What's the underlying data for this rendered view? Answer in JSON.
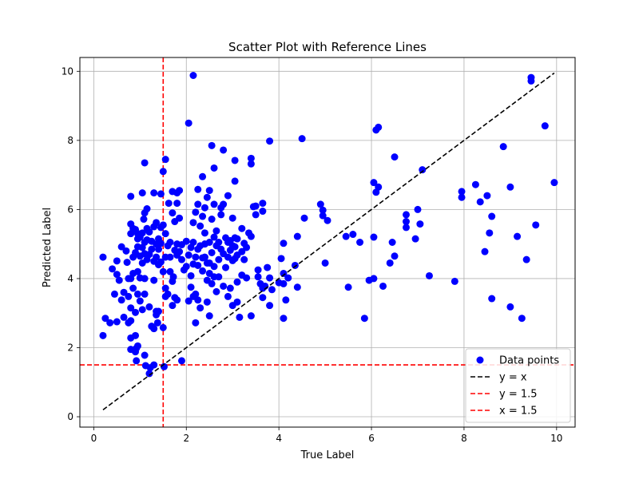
{
  "chart_data": {
    "type": "scatter",
    "title": "Scatter Plot with Reference Lines",
    "xlabel": "True Label",
    "ylabel": "Predicted Label",
    "xlim": [
      -0.3,
      10.4
    ],
    "ylim": [
      -0.3,
      10.4
    ],
    "x_ticks": [
      0,
      2,
      4,
      6,
      8,
      10
    ],
    "y_ticks": [
      0,
      2,
      4,
      6,
      8,
      10
    ],
    "grid": true,
    "legend_position": "bottom-right",
    "colors": {
      "points": "#0000ff",
      "identity_line": "#000000",
      "reference_lines": "#ff0000",
      "grid": "#b0b0b0"
    },
    "series": [
      {
        "name": "Data points",
        "kind": "scatter",
        "points": [
          [
            0.2,
            4.62
          ],
          [
            0.2,
            2.35
          ],
          [
            0.25,
            2.85
          ],
          [
            0.35,
            2.72
          ],
          [
            0.4,
            4.28
          ],
          [
            0.45,
            3.55
          ],
          [
            0.5,
            4.51
          ],
          [
            0.5,
            4.12
          ],
          [
            0.5,
            2.75
          ],
          [
            0.55,
            3.95
          ],
          [
            0.6,
            3.38
          ],
          [
            0.6,
            4.92
          ],
          [
            0.65,
            3.6
          ],
          [
            0.65,
            2.88
          ],
          [
            0.7,
            4.8
          ],
          [
            0.72,
            4.47
          ],
          [
            0.75,
            3.48
          ],
          [
            0.75,
            4.0
          ],
          [
            0.75,
            2.72
          ],
          [
            0.8,
            5.3
          ],
          [
            0.8,
            5.58
          ],
          [
            0.8,
            6.38
          ],
          [
            0.8,
            4.0
          ],
          [
            0.8,
            3.15
          ],
          [
            0.8,
            2.78
          ],
          [
            0.8,
            2.28
          ],
          [
            0.8,
            1.95
          ],
          [
            0.85,
            5.45
          ],
          [
            0.85,
            4.62
          ],
          [
            0.85,
            3.72
          ],
          [
            0.85,
            4.15
          ],
          [
            0.9,
            5.42
          ],
          [
            0.9,
            4.75
          ],
          [
            0.9,
            3.02
          ],
          [
            0.9,
            2.35
          ],
          [
            0.9,
            1.88
          ],
          [
            0.92,
            1.62
          ],
          [
            0.92,
            1.98
          ],
          [
            0.95,
            5.3
          ],
          [
            0.95,
            5.15
          ],
          [
            0.95,
            4.92
          ],
          [
            0.95,
            4.2
          ],
          [
            0.95,
            3.55
          ],
          [
            0.95,
            2.05
          ],
          [
            1.0,
            5.2
          ],
          [
            1.0,
            4.65
          ],
          [
            1.0,
            4.02
          ],
          [
            1.0,
            3.35
          ],
          [
            1.05,
            5.32
          ],
          [
            1.05,
            4.9
          ],
          [
            1.05,
            4.45
          ],
          [
            1.05,
            3.1
          ],
          [
            1.05,
            6.48
          ],
          [
            1.08,
            5.72
          ],
          [
            1.1,
            7.35
          ],
          [
            1.1,
            5.9
          ],
          [
            1.1,
            5.05
          ],
          [
            1.1,
            4.72
          ],
          [
            1.1,
            4.0
          ],
          [
            1.1,
            3.55
          ],
          [
            1.1,
            1.78
          ],
          [
            1.12,
            1.48
          ],
          [
            1.15,
            6.02
          ],
          [
            1.15,
            5.45
          ],
          [
            1.15,
            5.12
          ],
          [
            1.15,
            4.55
          ],
          [
            1.2,
            5.35
          ],
          [
            1.2,
            4.7
          ],
          [
            1.2,
            3.18
          ],
          [
            1.2,
            1.25
          ],
          [
            1.22,
            1.42
          ],
          [
            1.25,
            5.08
          ],
          [
            1.25,
            4.85
          ],
          [
            1.25,
            2.62
          ],
          [
            1.3,
            6.48
          ],
          [
            1.3,
            5.5
          ],
          [
            1.3,
            4.5
          ],
          [
            1.3,
            3.95
          ],
          [
            1.3,
            2.55
          ],
          [
            1.3,
            1.5
          ],
          [
            1.35,
            5.62
          ],
          [
            1.35,
            5.0
          ],
          [
            1.35,
            4.62
          ],
          [
            1.35,
            3.05
          ],
          [
            1.35,
            2.95
          ],
          [
            1.38,
            2.72
          ],
          [
            1.4,
            5.15
          ],
          [
            1.4,
            4.85
          ],
          [
            1.4,
            4.4
          ],
          [
            1.4,
            3.05
          ],
          [
            1.45,
            6.45
          ],
          [
            1.45,
            5.48
          ],
          [
            1.45,
            5.02
          ],
          [
            1.45,
            4.48
          ],
          [
            1.5,
            7.1
          ],
          [
            1.5,
            5.55
          ],
          [
            1.5,
            4.2
          ],
          [
            1.5,
            2.58
          ],
          [
            1.52,
            1.45
          ],
          [
            1.55,
            7.45
          ],
          [
            1.55,
            5.3
          ],
          [
            1.55,
            4.62
          ],
          [
            1.55,
            3.72
          ],
          [
            1.55,
            3.48
          ],
          [
            1.6,
            4.95
          ],
          [
            1.6,
            3.55
          ],
          [
            1.62,
            6.18
          ],
          [
            1.65,
            5.05
          ],
          [
            1.65,
            4.62
          ],
          [
            1.65,
            4.2
          ],
          [
            1.7,
            6.52
          ],
          [
            1.7,
            5.9
          ],
          [
            1.7,
            3.92
          ],
          [
            1.7,
            3.22
          ],
          [
            1.72,
            4.05
          ],
          [
            1.75,
            5.65
          ],
          [
            1.75,
            4.82
          ],
          [
            1.75,
            3.45
          ],
          [
            1.8,
            6.48
          ],
          [
            1.8,
            6.18
          ],
          [
            1.8,
            5.0
          ],
          [
            1.8,
            4.68
          ],
          [
            1.8,
            3.38
          ],
          [
            1.85,
            5.75
          ],
          [
            1.85,
            4.78
          ],
          [
            1.85,
            6.55
          ],
          [
            1.9,
            4.98
          ],
          [
            1.9,
            4.55
          ],
          [
            1.9,
            1.62
          ],
          [
            1.95,
            4.25
          ],
          [
            2.0,
            5.08
          ],
          [
            2.0,
            4.35
          ],
          [
            2.05,
            8.5
          ],
          [
            2.05,
            4.68
          ],
          [
            2.05,
            3.35
          ],
          [
            2.1,
            4.9
          ],
          [
            2.1,
            4.08
          ],
          [
            2.1,
            3.75
          ],
          [
            2.15,
            9.88
          ],
          [
            2.15,
            5.62
          ],
          [
            2.15,
            5.05
          ],
          [
            2.15,
            4.42
          ],
          [
            2.15,
            3.48
          ],
          [
            2.2,
            5.92
          ],
          [
            2.2,
            4.62
          ],
          [
            2.2,
            3.55
          ],
          [
            2.2,
            2.72
          ],
          [
            2.25,
            6.58
          ],
          [
            2.25,
            6.15
          ],
          [
            2.25,
            4.85
          ],
          [
            2.25,
            4.38
          ],
          [
            2.25,
            3.38
          ],
          [
            2.3,
            5.52
          ],
          [
            2.3,
            4.95
          ],
          [
            2.3,
            3.15
          ],
          [
            2.35,
            6.95
          ],
          [
            2.35,
            5.8
          ],
          [
            2.35,
            4.6
          ],
          [
            2.35,
            4.22
          ],
          [
            2.4,
            6.05
          ],
          [
            2.4,
            5.32
          ],
          [
            2.4,
            5.0
          ],
          [
            2.4,
            4.62
          ],
          [
            2.45,
            6.35
          ],
          [
            2.45,
            4.45
          ],
          [
            2.45,
            3.95
          ],
          [
            2.45,
            3.32
          ],
          [
            2.5,
            6.55
          ],
          [
            2.5,
            5.05
          ],
          [
            2.5,
            4.45
          ],
          [
            2.5,
            4.15
          ],
          [
            2.5,
            2.92
          ],
          [
            2.55,
            7.85
          ],
          [
            2.55,
            5.72
          ],
          [
            2.55,
            4.75
          ],
          [
            2.55,
            3.85
          ],
          [
            2.6,
            7.2
          ],
          [
            2.6,
            6.15
          ],
          [
            2.6,
            5.2
          ],
          [
            2.6,
            4.35
          ],
          [
            2.6,
            4.05
          ],
          [
            2.65,
            5.38
          ],
          [
            2.65,
            4.95
          ],
          [
            2.65,
            3.62
          ],
          [
            2.7,
            5.05
          ],
          [
            2.7,
            4.55
          ],
          [
            2.7,
            4.05
          ],
          [
            2.75,
            6.05
          ],
          [
            2.75,
            5.85
          ],
          [
            2.75,
            4.85
          ],
          [
            2.8,
            7.72
          ],
          [
            2.8,
            6.15
          ],
          [
            2.8,
            4.72
          ],
          [
            2.8,
            3.78
          ],
          [
            2.85,
            5.18
          ],
          [
            2.85,
            4.32
          ],
          [
            2.9,
            6.4
          ],
          [
            2.9,
            5.05
          ],
          [
            2.9,
            4.62
          ],
          [
            2.9,
            3.48
          ],
          [
            2.95,
            5.1
          ],
          [
            2.95,
            4.82
          ],
          [
            2.95,
            3.72
          ],
          [
            3.0,
            5.75
          ],
          [
            3.0,
            4.95
          ],
          [
            3.0,
            4.52
          ],
          [
            3.0,
            3.22
          ],
          [
            3.05,
            7.42
          ],
          [
            3.05,
            6.82
          ],
          [
            3.05,
            5.18
          ],
          [
            3.05,
            4.92
          ],
          [
            3.05,
            4.58
          ],
          [
            3.1,
            5.15
          ],
          [
            3.1,
            4.68
          ],
          [
            3.1,
            3.9
          ],
          [
            3.1,
            3.32
          ],
          [
            3.15,
            2.88
          ],
          [
            3.2,
            5.45
          ],
          [
            3.2,
            4.78
          ],
          [
            3.2,
            4.1
          ],
          [
            3.25,
            5.02
          ],
          [
            3.25,
            4.55
          ],
          [
            3.3,
            4.9
          ],
          [
            3.3,
            4.02
          ],
          [
            3.35,
            5.32
          ],
          [
            3.4,
            7.48
          ],
          [
            3.4,
            7.32
          ],
          [
            3.4,
            5.22
          ],
          [
            3.4,
            2.92
          ],
          [
            3.45,
            6.08
          ],
          [
            3.5,
            6.1
          ],
          [
            3.5,
            5.85
          ],
          [
            3.55,
            4.25
          ],
          [
            3.55,
            4.05
          ],
          [
            3.6,
            3.85
          ],
          [
            3.65,
            6.18
          ],
          [
            3.65,
            5.95
          ],
          [
            3.65,
            3.72
          ],
          [
            3.65,
            3.45
          ],
          [
            3.7,
            3.78
          ],
          [
            3.75,
            4.32
          ],
          [
            3.8,
            7.98
          ],
          [
            3.8,
            3.22
          ],
          [
            3.8,
            4.02
          ],
          [
            3.85,
            3.68
          ],
          [
            4.0,
            3.88
          ],
          [
            4.05,
            4.58
          ],
          [
            4.1,
            5.02
          ],
          [
            4.1,
            4.15
          ],
          [
            4.1,
            3.85
          ],
          [
            4.1,
            2.85
          ],
          [
            4.15,
            3.38
          ],
          [
            4.2,
            4.02
          ],
          [
            4.35,
            4.38
          ],
          [
            4.4,
            5.22
          ],
          [
            4.4,
            3.75
          ],
          [
            4.5,
            8.05
          ],
          [
            4.55,
            5.75
          ],
          [
            4.9,
            6.15
          ],
          [
            4.95,
            5.98
          ],
          [
            4.95,
            5.82
          ],
          [
            5.0,
            4.45
          ],
          [
            5.05,
            5.68
          ],
          [
            5.45,
            5.22
          ],
          [
            5.5,
            3.75
          ],
          [
            5.6,
            5.28
          ],
          [
            5.75,
            5.05
          ],
          [
            5.85,
            2.85
          ],
          [
            5.95,
            3.95
          ],
          [
            6.05,
            6.78
          ],
          [
            6.05,
            5.2
          ],
          [
            6.05,
            4.0
          ],
          [
            6.1,
            8.3
          ],
          [
            6.1,
            6.5
          ],
          [
            6.15,
            8.38
          ],
          [
            6.15,
            6.65
          ],
          [
            6.25,
            3.78
          ],
          [
            6.4,
            4.45
          ],
          [
            6.45,
            5.05
          ],
          [
            6.5,
            4.65
          ],
          [
            6.5,
            7.52
          ],
          [
            6.75,
            5.85
          ],
          [
            6.75,
            5.65
          ],
          [
            6.75,
            5.48
          ],
          [
            6.95,
            5.15
          ],
          [
            7.0,
            6.0
          ],
          [
            7.05,
            5.58
          ],
          [
            7.1,
            7.15
          ],
          [
            7.25,
            4.08
          ],
          [
            7.8,
            3.92
          ],
          [
            7.95,
            6.52
          ],
          [
            7.95,
            6.35
          ],
          [
            8.25,
            6.72
          ],
          [
            8.35,
            6.22
          ],
          [
            8.45,
            4.78
          ],
          [
            8.5,
            6.4
          ],
          [
            8.55,
            5.32
          ],
          [
            8.6,
            5.8
          ],
          [
            8.6,
            3.42
          ],
          [
            8.85,
            7.82
          ],
          [
            9.0,
            6.65
          ],
          [
            9.0,
            3.18
          ],
          [
            9.15,
            5.22
          ],
          [
            9.25,
            2.85
          ],
          [
            9.35,
            4.55
          ],
          [
            9.45,
            9.72
          ],
          [
            9.45,
            9.82
          ],
          [
            9.55,
            5.55
          ],
          [
            9.75,
            8.42
          ],
          [
            9.95,
            6.78
          ]
        ]
      },
      {
        "name": "y = x",
        "kind": "line",
        "x": [
          0.2,
          9.95
        ],
        "y": [
          0.2,
          9.95
        ]
      },
      {
        "name": "y = 1.5",
        "kind": "hline",
        "y": 1.5
      },
      {
        "name": "x = 1.5",
        "kind": "vline",
        "x": 1.5
      }
    ]
  }
}
